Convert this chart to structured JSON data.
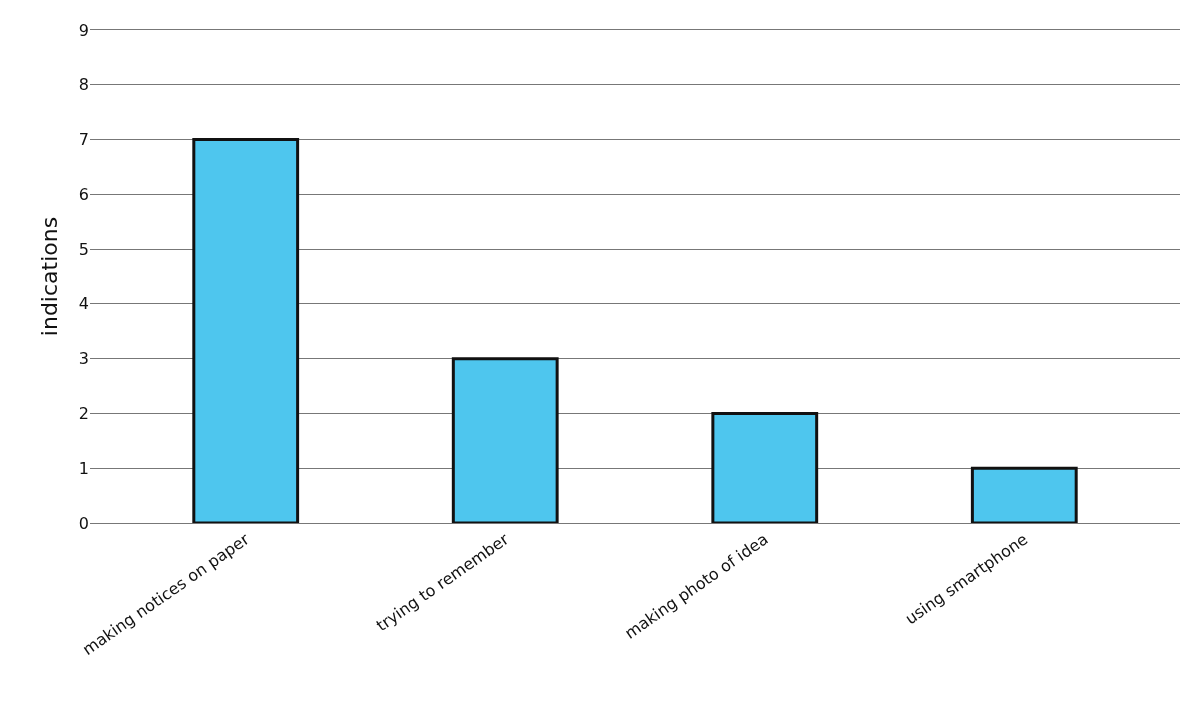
{
  "chart_data": {
    "type": "bar",
    "ylabel": "indications",
    "categories": [
      "making notices on paper",
      "trying to remember",
      "making photo of idea",
      "using smartphone"
    ],
    "values": [
      7,
      3,
      2,
      1
    ],
    "color": "#4ec6ee",
    "ylim": [
      0,
      9
    ],
    "yticks": [
      0,
      1,
      2,
      3,
      4,
      5,
      6,
      7,
      8,
      9
    ],
    "grid": "y"
  }
}
